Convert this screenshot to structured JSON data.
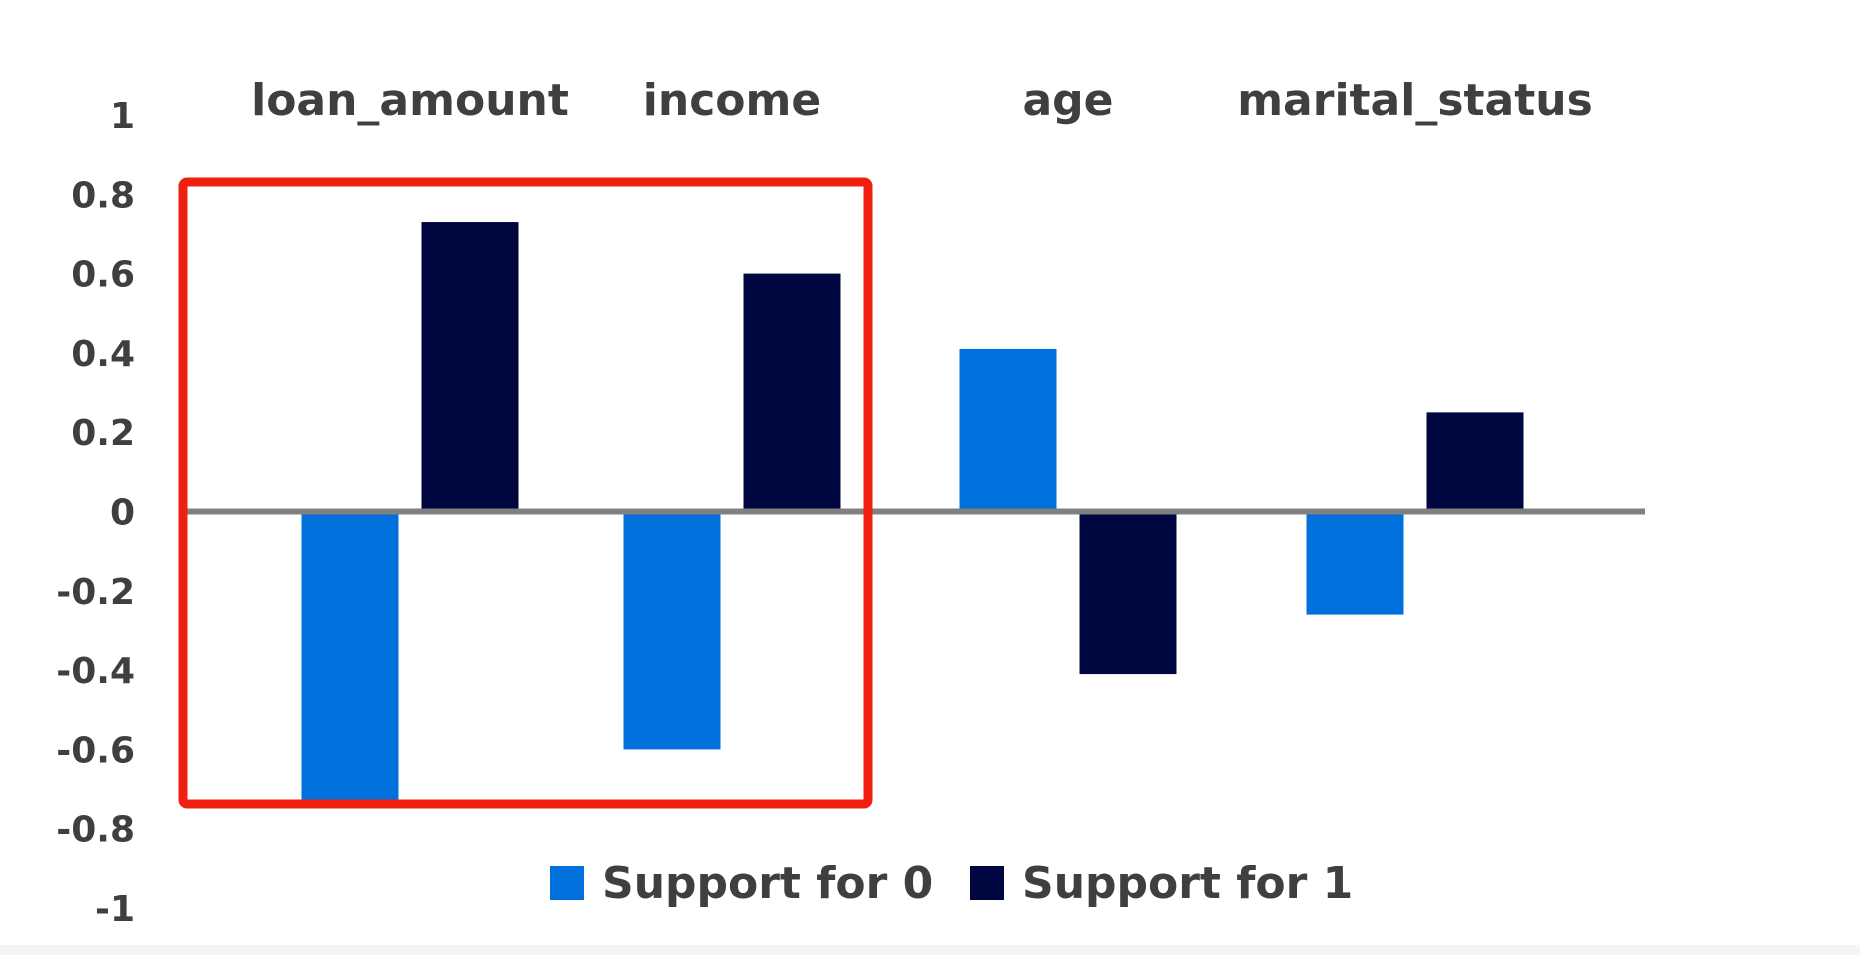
{
  "chart_data": {
    "type": "bar",
    "title": "",
    "xlabel": "",
    "ylabel": "",
    "categories": [
      "loan_amount",
      "income",
      "age",
      "marital_status"
    ],
    "series": [
      {
        "name": "Support for 0",
        "values": [
          -0.73,
          -0.6,
          0.41,
          -0.26
        ]
      },
      {
        "name": "Support for 1",
        "values": [
          0.73,
          0.6,
          -0.41,
          0.25
        ]
      }
    ],
    "ylim": [
      -1,
      1
    ],
    "yticks": [
      "1",
      "0.8",
      "0.6",
      "0.4",
      "0.2",
      "0",
      "-0.2",
      "-0.4",
      "-0.6",
      "-0.8",
      "-1"
    ],
    "legend_position": "bottom",
    "grid": false,
    "highlight": {
      "categories": [
        "loan_amount",
        "income"
      ],
      "color": "#f02010"
    }
  },
  "colors": {
    "series0": "#0070dd",
    "series1": "#000640",
    "axis": "#808080",
    "text": "#3f3f3f"
  }
}
